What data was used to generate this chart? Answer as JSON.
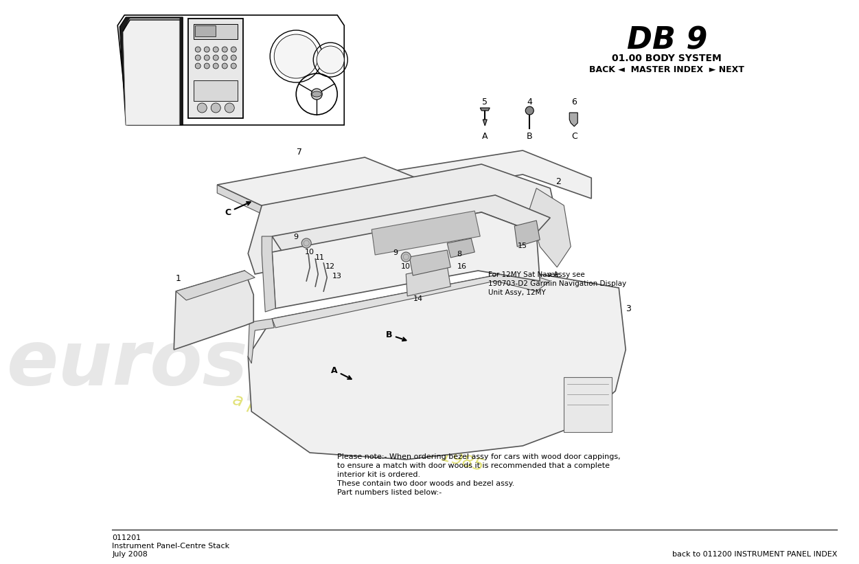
{
  "title_db9": "DB 9",
  "title_system": "01.00 BODY SYSTEM",
  "nav_text": "BACK ◄  MASTER INDEX  ► NEXT",
  "bg_color": "#ffffff",
  "note_text": "Please note:- When ordering bezel assy for cars with wood door cappings,\nto ensure a match with door woods it is recommended that a complete\ninterior kit is ordered.\nThese contain two door woods and bezel assy.\nPart numbers listed below:-",
  "nav_note_text_line1": "For 12MY Sat Nav Assy see",
  "nav_note_text_line2": "190703-D2 Garmin Navigation Display",
  "nav_note_text_line3": "Unit Assy, 12MY",
  "footer_left_line1": "011201",
  "footer_left_line2": "Instrument Panel-Centre Stack",
  "footer_left_line3": "July 2008",
  "footer_right": "back to 011200 INSTRUMENT PANEL INDEX",
  "watermark_text1": "eurospares",
  "watermark_text2": "a passion for parts since 1985"
}
